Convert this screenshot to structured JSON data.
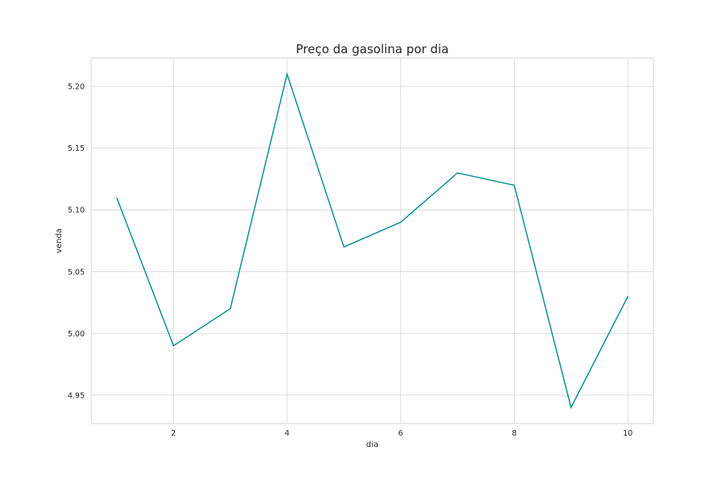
{
  "chart_data": {
    "type": "line",
    "title": "Preço da gasolina por dia",
    "xlabel": "dia",
    "ylabel": "venda",
    "x": [
      1,
      2,
      3,
      4,
      5,
      6,
      7,
      8,
      9,
      10
    ],
    "series": [
      {
        "values": [
          5.11,
          4.99,
          5.02,
          5.21,
          5.07,
          5.09,
          5.13,
          5.12,
          4.94,
          5.03
        ],
        "color": "#008b8b"
      }
    ],
    "xlim": [
      0.55,
      10.45
    ],
    "ylim": [
      4.927,
      5.223
    ],
    "xticks": [
      2,
      4,
      6,
      8,
      10
    ],
    "xtick_labels": [
      "2",
      "4",
      "6",
      "8",
      "10"
    ],
    "yticks": [
      4.95,
      5.0,
      5.05,
      5.1,
      5.15,
      5.2
    ],
    "ytick_labels": [
      "4.95",
      "5.00",
      "5.05",
      "5.10",
      "5.15",
      "5.20"
    ],
    "grid": true,
    "legend": false
  }
}
